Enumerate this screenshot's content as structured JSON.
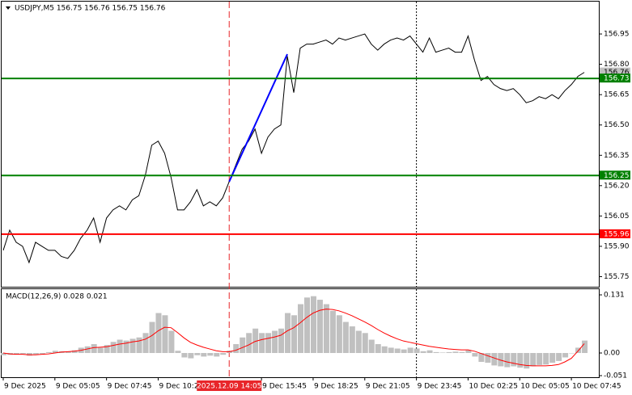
{
  "chart_data": [
    {
      "type": "line",
      "title": "USDJPY,M5  156.75 156.76 156.75 156.76",
      "color": "#000000",
      "values": [
        155.88,
        155.98,
        155.92,
        155.9,
        155.82,
        155.92,
        155.9,
        155.88,
        155.88,
        155.85,
        155.84,
        155.88,
        155.94,
        155.98,
        156.04,
        155.92,
        156.04,
        156.08,
        156.1,
        156.08,
        156.13,
        156.15,
        156.25,
        156.4,
        156.42,
        156.36,
        156.24,
        156.08,
        156.08,
        156.12,
        156.18,
        156.1,
        156.12,
        156.1,
        156.14,
        156.22,
        156.3,
        156.38,
        156.42,
        156.48,
        156.36,
        156.44,
        156.48,
        156.5,
        156.84,
        156.66,
        156.88,
        156.9,
        156.9,
        156.91,
        156.92,
        156.9,
        156.93,
        156.92,
        156.93,
        156.94,
        156.95,
        156.9,
        156.87,
        156.9,
        156.92,
        156.93,
        156.92,
        156.94,
        156.9,
        156.86,
        156.93,
        156.86,
        156.87,
        156.88,
        156.86,
        156.86,
        156.94,
        156.82,
        156.72,
        156.74,
        156.7,
        156.68,
        156.67,
        156.68,
        156.65,
        156.61,
        156.62,
        156.64,
        156.63,
        156.65,
        156.63,
        156.67,
        156.7,
        156.74,
        156.76
      ],
      "xlim": [
        -0.25,
        92.25
      ],
      "ylim": [
        155.7,
        157.11
      ],
      "yticks": [
        156.95,
        {
          "value": 156.8,
          "label": "156.80"
        },
        156.65,
        {
          "value": 156.5,
          "label": "156.50"
        },
        156.35,
        {
          "value": 156.2,
          "label": "156.20"
        },
        156.05,
        {
          "value": 155.9,
          "label": "155.90"
        },
        155.75
      ],
      "xticks": [
        {
          "value": 0,
          "label": "9 Dec 2025"
        },
        {
          "value": 8,
          "label": "9 Dec 05:05"
        },
        {
          "value": 16,
          "label": "9 Dec 07:45"
        },
        {
          "value": 24,
          "label": "9 Dec 10:25"
        },
        {
          "value": 40,
          "label": "9 Dec 15:45"
        },
        {
          "value": 48,
          "label": "9 Dec 18:25"
        },
        {
          "value": 56,
          "label": "9 Dec 21:05"
        },
        {
          "value": 64,
          "label": "9 Dec 23:45"
        },
        {
          "value": 72,
          "label": "10 Dec 02:25"
        },
        {
          "value": 80,
          "label": "10 Dec 05:05"
        },
        {
          "value": 88,
          "label": "10 Dec 07:45"
        }
      ],
      "cursor": {
        "value": 35,
        "label": "2025.12.09 14:05",
        "color": "#e8262a"
      },
      "separator": {
        "value": 64,
        "color": "#000000"
      },
      "levels": [
        {
          "value": 156.73,
          "color": "#008000"
        },
        {
          "value": 156.25,
          "color": "#008000"
        },
        {
          "value": 155.96,
          "color": "#ff0000"
        }
      ],
      "last": {
        "value": 156.76,
        "color": "#c0c0c0"
      },
      "trendline": {
        "x": [
          35,
          44
        ],
        "values": [
          156.22,
          156.85
        ],
        "color": "#0000ff"
      }
    },
    {
      "type": "macd",
      "title": "MACD(12,26,9) 0.028 0.021",
      "color": "#c0c0c0",
      "signal_color": "#ff0000",
      "values": [
        -0.005,
        -0.004,
        -0.003,
        -0.002,
        -0.006,
        -0.003,
        -0.002,
        0.002,
        0.005,
        0.004,
        0.003,
        0.006,
        0.012,
        0.015,
        0.02,
        0.012,
        0.018,
        0.025,
        0.03,
        0.028,
        0.032,
        0.035,
        0.045,
        0.07,
        0.09,
        0.085,
        0.05,
        0.005,
        -0.01,
        -0.012,
        -0.005,
        -0.008,
        -0.006,
        -0.008,
        -0.004,
        0.005,
        0.02,
        0.035,
        0.045,
        0.055,
        0.045,
        0.045,
        0.05,
        0.055,
        0.09,
        0.085,
        0.11,
        0.125,
        0.128,
        0.12,
        0.11,
        0.095,
        0.085,
        0.07,
        0.06,
        0.05,
        0.045,
        0.03,
        0.02,
        0.015,
        0.012,
        0.01,
        0.008,
        0.012,
        0.01,
        0.004,
        0.006,
        0.002,
        0.001,
        0.002,
        0.003,
        0.002,
        0.006,
        -0.008,
        -0.02,
        -0.022,
        -0.028,
        -0.03,
        -0.032,
        -0.03,
        -0.033,
        -0.035,
        -0.03,
        -0.027,
        -0.026,
        -0.022,
        -0.018,
        -0.01,
        0.0,
        0.012,
        0.028
      ],
      "signal": [
        0.0,
        -0.002,
        -0.003,
        -0.003,
        -0.004,
        -0.004,
        -0.003,
        -0.002,
        0.0,
        0.002,
        0.003,
        0.004,
        0.006,
        0.009,
        0.012,
        0.013,
        0.014,
        0.017,
        0.02,
        0.022,
        0.025,
        0.027,
        0.031,
        0.039,
        0.05,
        0.058,
        0.057,
        0.046,
        0.034,
        0.024,
        0.018,
        0.013,
        0.009,
        0.005,
        0.003,
        0.003,
        0.006,
        0.012,
        0.018,
        0.026,
        0.03,
        0.033,
        0.036,
        0.04,
        0.05,
        0.057,
        0.068,
        0.08,
        0.09,
        0.096,
        0.099,
        0.098,
        0.095,
        0.09,
        0.084,
        0.077,
        0.07,
        0.062,
        0.053,
        0.045,
        0.038,
        0.032,
        0.027,
        0.024,
        0.021,
        0.018,
        0.015,
        0.013,
        0.011,
        0.009,
        0.008,
        0.007,
        0.007,
        0.004,
        -0.001,
        -0.006,
        -0.011,
        -0.016,
        -0.02,
        -0.023,
        -0.026,
        -0.028,
        -0.029,
        -0.029,
        -0.029,
        -0.028,
        -0.026,
        -0.02,
        -0.012,
        0.004,
        0.021
      ],
      "xlim": [
        -0.25,
        92.25
      ],
      "ylim": [
        -0.0546,
        0.1456
      ],
      "yticks": [
        0.131,
        {
          "value": 0,
          "label": "0.00"
        },
        -0.051
      ]
    }
  ]
}
